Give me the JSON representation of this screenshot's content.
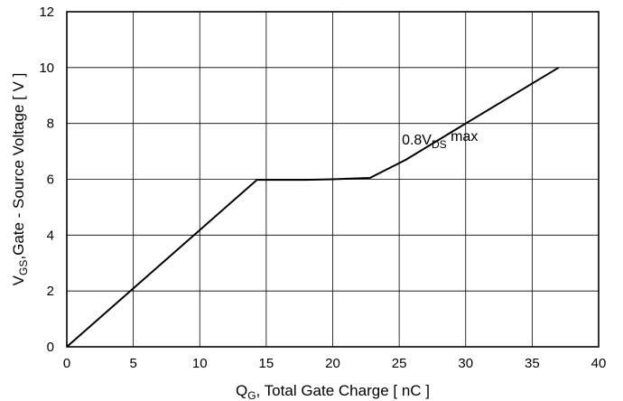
{
  "chart_data": {
    "type": "line",
    "xlabel_main": "Q",
    "xlabel_sub": "G",
    "xlabel_rest": ", Total Gate Charge [ nC ]",
    "ylabel_main": "V",
    "ylabel_sub": "GS",
    "ylabel_rest": ",Gate - Source Voltage [ V ]",
    "xlim": [
      0,
      40
    ],
    "ylim": [
      0,
      12
    ],
    "x_ticks": [
      0,
      5,
      10,
      15,
      20,
      25,
      30,
      35,
      40
    ],
    "y_ticks": [
      0,
      2,
      4,
      6,
      8,
      10,
      12
    ],
    "grid": true,
    "series": [
      {
        "x": [
          0,
          14.3,
          18.0,
          20.0,
          22.8,
          25.5,
          30.0,
          37.0
        ],
        "y": [
          0,
          5.98,
          5.98,
          6.0,
          6.05,
          6.7,
          8.0,
          10.0
        ]
      }
    ],
    "annotation": {
      "main": "0.8V",
      "sub": "DS",
      "rest": " max",
      "x": 25.2,
      "y": 7.4
    }
  }
}
